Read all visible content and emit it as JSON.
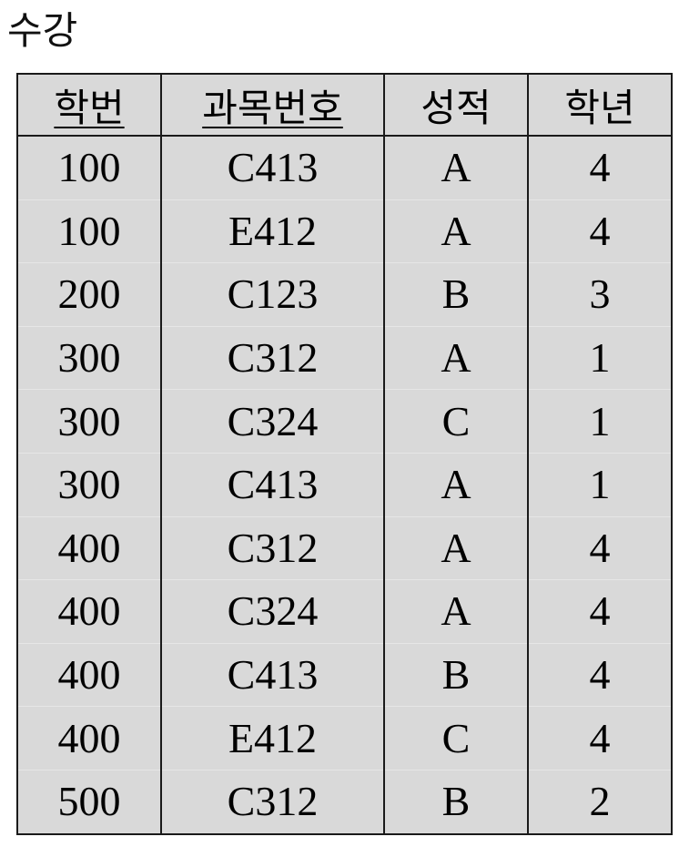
{
  "title": "수강",
  "columns": [
    {
      "label": "학번",
      "key": true
    },
    {
      "label": "과목번호",
      "key": true
    },
    {
      "label": "성적",
      "key": false
    },
    {
      "label": "학년",
      "key": false
    }
  ],
  "rows": [
    [
      "100",
      "C413",
      "A",
      "4"
    ],
    [
      "100",
      "E412",
      "A",
      "4"
    ],
    [
      "200",
      "C123",
      "B",
      "3"
    ],
    [
      "300",
      "C312",
      "A",
      "1"
    ],
    [
      "300",
      "C324",
      "C",
      "1"
    ],
    [
      "300",
      "C413",
      "A",
      "1"
    ],
    [
      "400",
      "C312",
      "A",
      "4"
    ],
    [
      "400",
      "C324",
      "A",
      "4"
    ],
    [
      "400",
      "C413",
      "B",
      "4"
    ],
    [
      "400",
      "E412",
      "C",
      "4"
    ],
    [
      "500",
      "C312",
      "B",
      "2"
    ]
  ]
}
